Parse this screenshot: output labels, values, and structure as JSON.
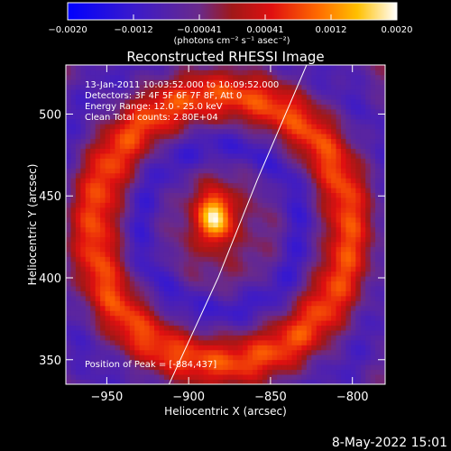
{
  "chart_data": {
    "type": "heatmap",
    "title": "Reconstructed RHESSI Image",
    "xlabel": "Heliocentric X (arcsec)",
    "ylabel": "Heliocentric Y (arcsec)",
    "xlim": [
      -975,
      -780
    ],
    "ylim": [
      335,
      530
    ],
    "x_ticks": [
      -950,
      -900,
      -850,
      -800
    ],
    "y_ticks": [
      350,
      400,
      450,
      500
    ],
    "grid": false,
    "colorbar": {
      "location": "top",
      "range": [
        -0.002,
        0.002
      ],
      "tick_labels": [
        "-0.0020",
        "-0.0012",
        "-0.00041",
        "0.00041",
        "0.0012",
        "0.0020"
      ],
      "unit_label": "(photons cm⁻² s⁻¹ asec⁻²)",
      "colormap": "blue-purple-red-orange-yellow-white"
    },
    "annotations": [
      "13-Jan-2011 10:03:52.000 to 10:09:52.000",
      "Detectors: 3F 4F 5F 6F 7F 8F, Att 0",
      "Energy Range: 12.0 - 25.0 keV",
      "Clean     Total counts: 2.80E+04"
    ],
    "peak_label": "Position of Peak = [-884,437]",
    "peak_position": [
      -884,
      437
    ],
    "limb_line": {
      "points": [
        [
          -912,
          335
        ],
        [
          -882,
          400
        ],
        [
          -858,
          460
        ],
        [
          -828,
          530
        ]
      ]
    },
    "image_features": [
      {
        "kind": "peak",
        "x": -884,
        "y": 437,
        "value": 0.002
      },
      {
        "kind": "ring-arc",
        "note": "red/orange horseshoe around the peak"
      },
      {
        "kind": "negative-sidelobes",
        "note": "purple/blue regions inside the arcs"
      }
    ]
  },
  "footer": {
    "date": "8-May-2022 15:01"
  },
  "colors": {
    "background": "#000000",
    "text": "#ffffff",
    "limb_line": "#ffffff"
  }
}
